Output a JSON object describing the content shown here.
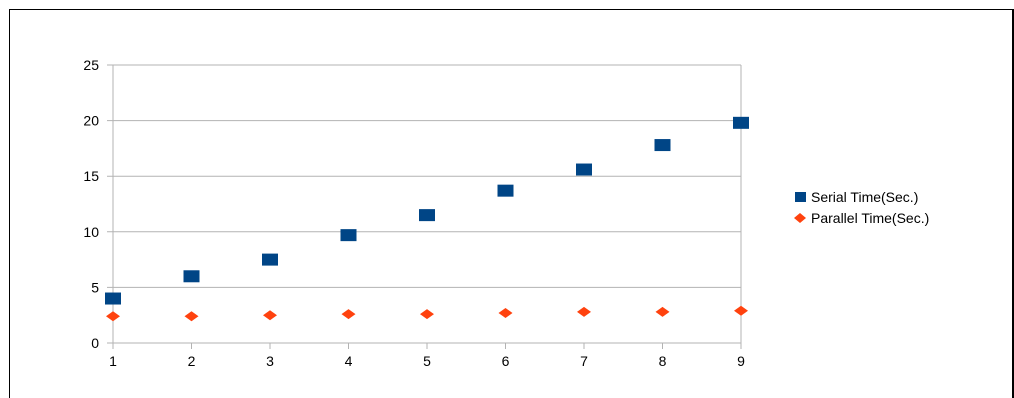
{
  "chart_data": {
    "type": "scatter",
    "title": "",
    "xlabel": "",
    "ylabel": "",
    "x": [
      1,
      2,
      3,
      4,
      5,
      6,
      7,
      8,
      9
    ],
    "xlim": [
      1,
      9
    ],
    "ylim": [
      0,
      25
    ],
    "x_ticks": [
      "1",
      "2",
      "3",
      "4",
      "5",
      "6",
      "7",
      "8",
      "9"
    ],
    "y_ticks": [
      "0",
      "5",
      "10",
      "15",
      "20",
      "25"
    ],
    "grid": "horizontal",
    "legend_position": "right",
    "series": [
      {
        "name": "Serial Time(Sec.)",
        "marker": "square",
        "color": "#004586",
        "values": [
          4.0,
          6.0,
          7.5,
          9.7,
          11.5,
          13.7,
          15.6,
          17.8,
          19.8
        ]
      },
      {
        "name": "Parallel Time(Sec.)",
        "marker": "diamond",
        "color": "#ff420e",
        "values": [
          2.4,
          2.4,
          2.5,
          2.6,
          2.6,
          2.7,
          2.8,
          2.8,
          2.9
        ]
      }
    ]
  }
}
